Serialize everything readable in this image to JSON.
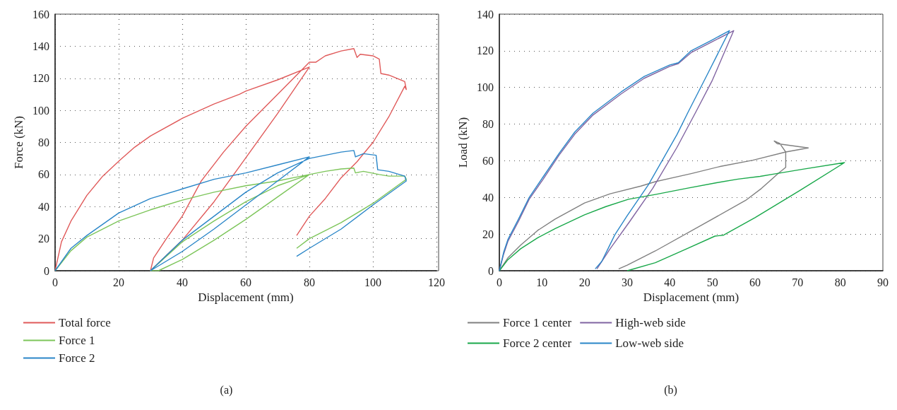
{
  "chart_data": [
    {
      "type": "line",
      "xlabel": "Displacement (mm)",
      "ylabel": "Force (kN)",
      "xlim": [
        0,
        120
      ],
      "xticks": [
        0,
        20,
        40,
        60,
        80,
        100,
        120
      ],
      "ylim": [
        0,
        160
      ],
      "yticks": [
        0,
        20,
        40,
        60,
        80,
        100,
        120,
        140,
        160
      ],
      "grid": true,
      "legend": "bottom",
      "marker": "none",
      "line_style": "solid",
      "annotations": [
        "(a)"
      ],
      "series": [
        {
          "name": "Total force",
          "color": "#e05a5a",
          "x": [
            0,
            2,
            5,
            10,
            15,
            20.4,
            25,
            30,
            40,
            50,
            58,
            60,
            70,
            80,
            70,
            59.5,
            50,
            40,
            30,
            31,
            35,
            40,
            46,
            53,
            60,
            70,
            80,
            82,
            85,
            90,
            94,
            95,
            96,
            100,
            102,
            102.5,
            105,
            110,
            110.5,
            110,
            105,
            100,
            95,
            90,
            85,
            80,
            76
          ],
          "values": [
            0,
            18,
            31,
            47,
            59,
            69,
            77,
            84,
            95,
            104,
            110,
            112,
            119,
            127,
            98,
            69,
            43,
            19,
            0,
            8,
            20,
            34,
            56,
            74,
            90,
            110,
            130,
            130,
            134,
            137,
            138.5,
            133,
            135,
            134,
            132,
            123,
            122,
            118,
            113,
            115,
            96,
            80,
            68,
            58,
            45,
            34,
            22
          ]
        },
        {
          "name": "Force 1",
          "color": "#7dc55a",
          "x": [
            0,
            5,
            10,
            20,
            30,
            40,
            50,
            60,
            70,
            80,
            70,
            60,
            50,
            40,
            32.5,
            30,
            40,
            50,
            60,
            70,
            80,
            85,
            90,
            94,
            94.5,
            97,
            102,
            105,
            110,
            110.5,
            100,
            90,
            80,
            76
          ],
          "values": [
            0,
            12.5,
            21,
            31,
            38,
            44,
            49,
            53,
            56,
            60,
            46,
            32,
            19,
            7,
            0,
            0,
            18,
            31,
            43,
            53,
            60,
            62,
            63.5,
            64,
            61,
            62,
            60,
            59,
            59,
            57,
            42,
            30,
            20,
            14
          ]
        },
        {
          "name": "Force 2",
          "color": "#2a86c8",
          "x": [
            0,
            5,
            10,
            20,
            30,
            40,
            50,
            60,
            70,
            80,
            70,
            60,
            50,
            40,
            30,
            40,
            50,
            60,
            70,
            80,
            85,
            90,
            94,
            94.5,
            97,
            101,
            101.5,
            105,
            110,
            110.5,
            100,
            90,
            80,
            76
          ],
          "values": [
            0,
            14,
            22,
            36,
            45,
            51,
            57,
            61,
            66,
            71,
            56,
            41,
            26,
            12,
            0,
            19,
            34,
            49,
            61,
            70,
            72,
            74,
            75,
            71,
            73,
            72,
            63,
            62,
            59,
            56,
            41,
            26,
            14,
            9
          ]
        }
      ]
    },
    {
      "type": "line",
      "xlabel": "Displacement (mm)",
      "ylabel": "Load (kN)",
      "xlim": [
        0,
        90
      ],
      "xticks": [
        0,
        10,
        20,
        30,
        40,
        50,
        60,
        70,
        80,
        90
      ],
      "ylim": [
        0,
        140
      ],
      "yticks": [
        0,
        20,
        40,
        60,
        80,
        100,
        120,
        140
      ],
      "grid": "y",
      "legend": "bottom",
      "marker": "none",
      "line_style": "solid",
      "annotations": [
        "(b)"
      ],
      "series": [
        {
          "name": "Force 1 center",
          "color": "#808080",
          "x": [
            0,
            2,
            5,
            9,
            13.1,
            20,
            26,
            33.2,
            36.6,
            45,
            52,
            59.5,
            67.2,
            72.5,
            65.2,
            64.5,
            65.8,
            67.2,
            67.2,
            65.5,
            61.5,
            57.8,
            48,
            36.6,
            30,
            28
          ],
          "values": [
            0,
            7,
            14,
            22,
            28.2,
            37,
            42,
            46.2,
            48.6,
            53,
            57,
            60.3,
            64.8,
            67,
            69.3,
            70.8,
            69.5,
            64.8,
            56.4,
            53.2,
            44.9,
            38.4,
            25.6,
            10.8,
            3,
            1
          ]
        },
        {
          "name": "High-web side",
          "color": "#8064a2",
          "x": [
            0,
            1,
            2,
            4.5,
            7,
            10.3,
            14,
            17.7,
            22,
            28.6,
            34,
            40,
            42,
            45,
            50,
            55,
            50,
            46.1,
            41.7,
            36,
            30.6,
            26,
            22.9
          ],
          "values": [
            0,
            9,
            16,
            27,
            39,
            50,
            63,
            74.5,
            85,
            96.5,
            105,
            111.5,
            113,
            119,
            125,
            131,
            104,
            86.6,
            67.4,
            45,
            26.9,
            12,
            1
          ]
        },
        {
          "name": "Force 2 center",
          "color": "#19a84a",
          "x": [
            0,
            2,
            5,
            9,
            13.1,
            20,
            25,
            30.3,
            36.6,
            44,
            51.2,
            56,
            61.2,
            65,
            71.2,
            81,
            70.4,
            60,
            52.6,
            50.6,
            44,
            36.6,
            30
          ],
          "values": [
            0,
            6,
            12,
            18,
            23,
            30.5,
            35,
            39,
            41.6,
            45,
            48.1,
            50,
            51.5,
            53,
            55.4,
            59,
            43.6,
            29,
            19.4,
            18.9,
            12,
            4.4,
            0
          ]
        },
        {
          "name": "Low-web side",
          "color": "#2a86c8",
          "x": [
            0,
            1,
            2,
            4.5,
            7,
            10.3,
            14,
            17.7,
            22,
            28.6,
            34,
            40,
            42,
            45,
            50,
            54,
            49,
            44.3,
            41.7,
            35,
            30,
            27.1,
            25.5,
            24,
            22.5
          ],
          "values": [
            0,
            10,
            17,
            28.2,
            40,
            51.3,
            64,
            75.7,
            86,
            97.6,
            106,
            112.3,
            113.5,
            120,
            126,
            131,
            108,
            86.6,
            74.4,
            47,
            30,
            19.6,
            12,
            5,
            1
          ]
        }
      ]
    }
  ]
}
